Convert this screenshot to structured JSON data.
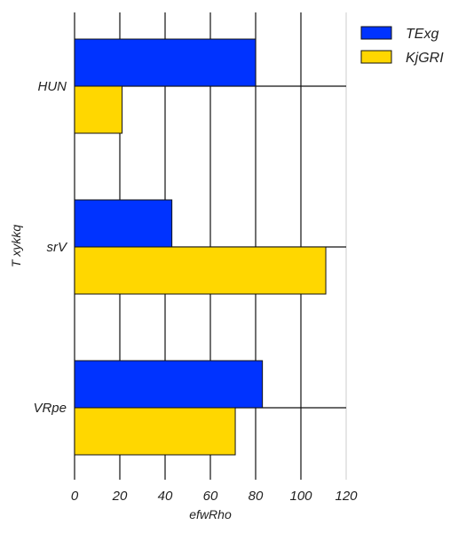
{
  "chart_data": {
    "type": "bar",
    "orientation": "horizontal",
    "categories": [
      "HUN",
      "srV",
      "VRpe"
    ],
    "series": [
      {
        "name": "TExg",
        "values": [
          80,
          43,
          83
        ],
        "color": "#0033ff"
      },
      {
        "name": "KjGRI",
        "values": [
          21,
          111,
          71
        ],
        "color": "#ffd700"
      }
    ],
    "xlabel": "efwRho",
    "ylabel": "T xykkq",
    "xlim": [
      0,
      120
    ],
    "xticks": [
      0,
      20,
      40,
      60,
      80,
      100,
      120
    ],
    "grid": true,
    "legend_position": "top-right"
  }
}
